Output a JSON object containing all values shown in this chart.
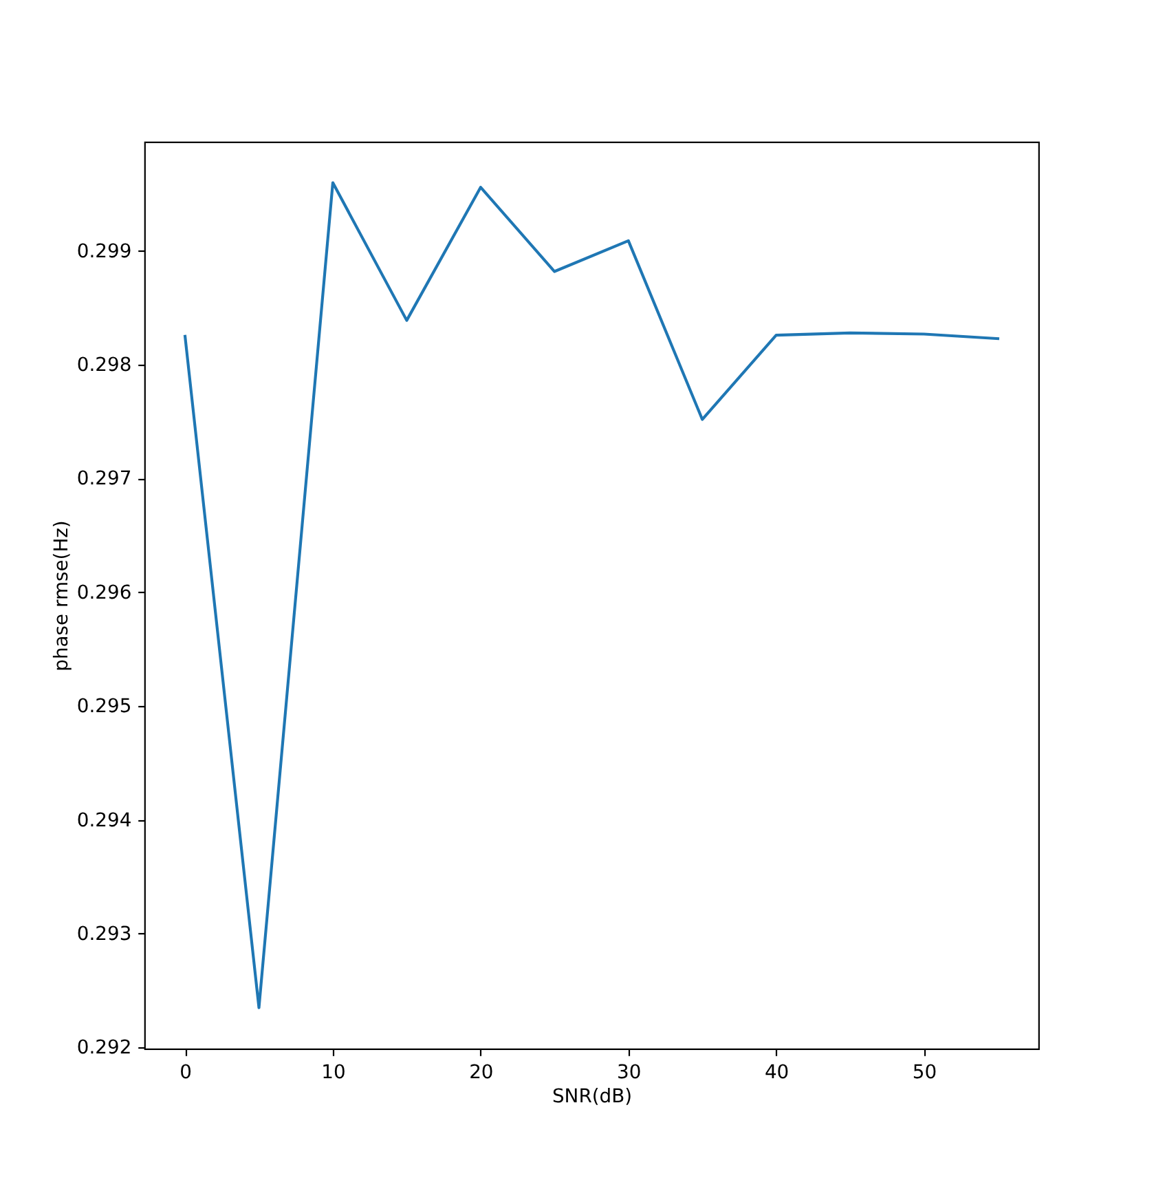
{
  "chart_data": {
    "type": "line",
    "xlabel": "SNR(dB)",
    "ylabel": "phase rmse(Hz)",
    "x": [
      0,
      5,
      10,
      15,
      20,
      25,
      30,
      35,
      40,
      45,
      50,
      55
    ],
    "values": [
      0.29825,
      0.29235,
      0.2996,
      0.29839,
      0.29956,
      0.29882,
      0.29909,
      0.29752,
      0.29826,
      0.29828,
      0.29827,
      0.29823
    ],
    "color": "#1f77b4",
    "xlim": [
      -2.75,
      57.75
    ],
    "ylim": [
      0.29199,
      0.29996
    ],
    "xticks": [
      0,
      10,
      20,
      30,
      40,
      50
    ],
    "yticks": [
      0.292,
      0.293,
      0.294,
      0.295,
      0.296,
      0.297,
      0.298,
      0.299
    ]
  }
}
